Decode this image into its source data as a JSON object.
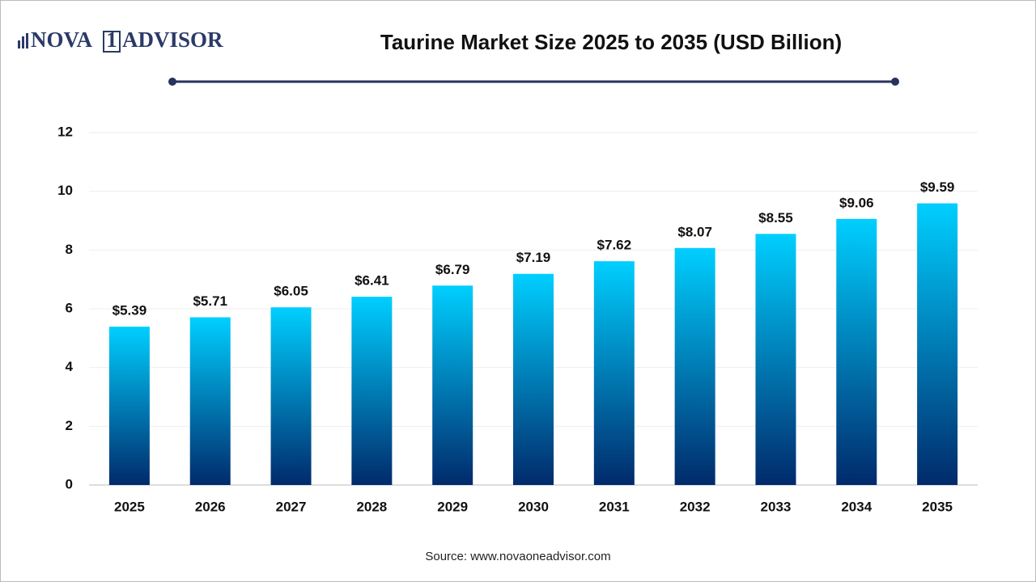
{
  "logo": {
    "left": "NOVA",
    "mark": "1",
    "right": "ADVISOR"
  },
  "chart_data": {
    "type": "bar",
    "title": "Taurine Market Size 2025 to 2035 (USD Billion)",
    "categories": [
      "2025",
      "2026",
      "2027",
      "2028",
      "2029",
      "2030",
      "2031",
      "2032",
      "2033",
      "2034",
      "2035"
    ],
    "values": [
      5.39,
      5.71,
      6.05,
      6.41,
      6.79,
      7.19,
      7.62,
      8.07,
      8.55,
      9.06,
      9.59
    ],
    "value_labels": [
      "$5.39",
      "$5.71",
      "$6.05",
      "$6.41",
      "$6.79",
      "$7.19",
      "$7.62",
      "$8.07",
      "$8.55",
      "$9.06",
      "$9.59"
    ],
    "colors": [
      "#00cfff",
      "#012a6b"
    ],
    "ylim": [
      0,
      12
    ],
    "yticks": [
      0,
      2,
      4,
      6,
      8,
      10,
      12
    ],
    "grid": true,
    "source": "Source: www.novaoneadvisor.com"
  }
}
